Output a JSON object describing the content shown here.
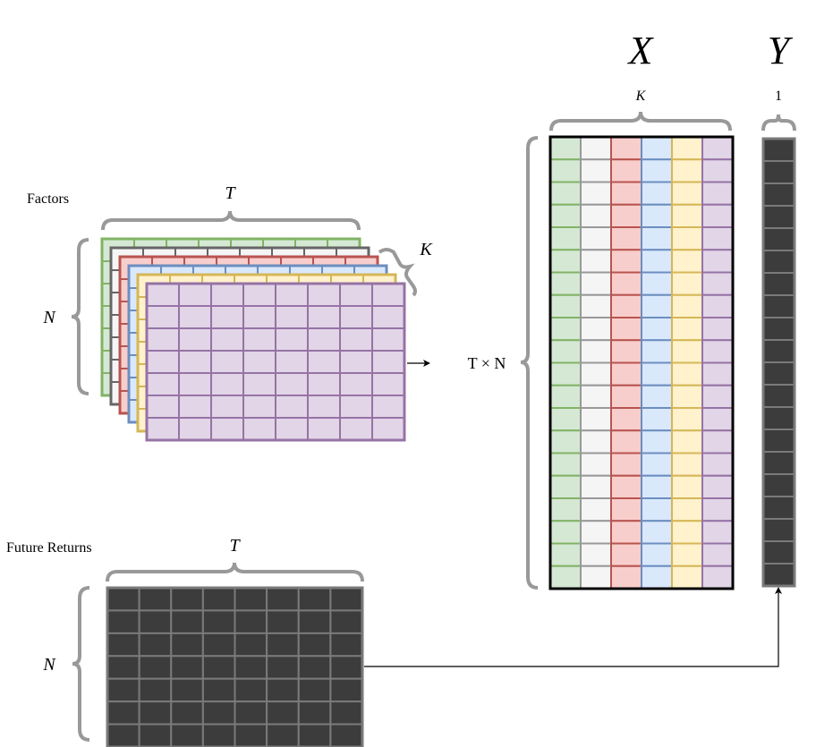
{
  "factors": {
    "title": "Factors",
    "time_label": "T",
    "stocks_label": "N",
    "depth_label": "K",
    "layers": [
      {
        "fill": "#d5e8d4",
        "stroke": "#82b366"
      },
      {
        "fill": "#f5f5f5",
        "stroke": "#666666"
      },
      {
        "fill": "#f8cecc",
        "stroke": "#b85450"
      },
      {
        "fill": "#dae8fc",
        "stroke": "#6c8ebf"
      },
      {
        "fill": "#fff2cc",
        "stroke": "#d6b656"
      },
      {
        "fill": "#e1d5e7",
        "stroke": "#9673a6"
      }
    ]
  },
  "returns": {
    "title": "Future Returns",
    "time_label": "T",
    "stocks_label": "N",
    "fill": "#3c3c3c",
    "stroke": "#7a7a7a"
  },
  "x_matrix": {
    "title": "X",
    "cols_label": "K",
    "rows_label": "T × N",
    "column_colors": [
      "#d5e8d4",
      "#f5f5f5",
      "#f8cecc",
      "#dae8fc",
      "#fff2cc",
      "#e1d5e7"
    ],
    "column_strokes": [
      "#82b366",
      "#999999",
      "#b85450",
      "#6c8ebf",
      "#d6b656",
      "#9673a6"
    ]
  },
  "y_vector": {
    "title": "Y",
    "cols_label": "1",
    "fill": "#3c3c3c",
    "stroke": "#7a7a7a"
  }
}
